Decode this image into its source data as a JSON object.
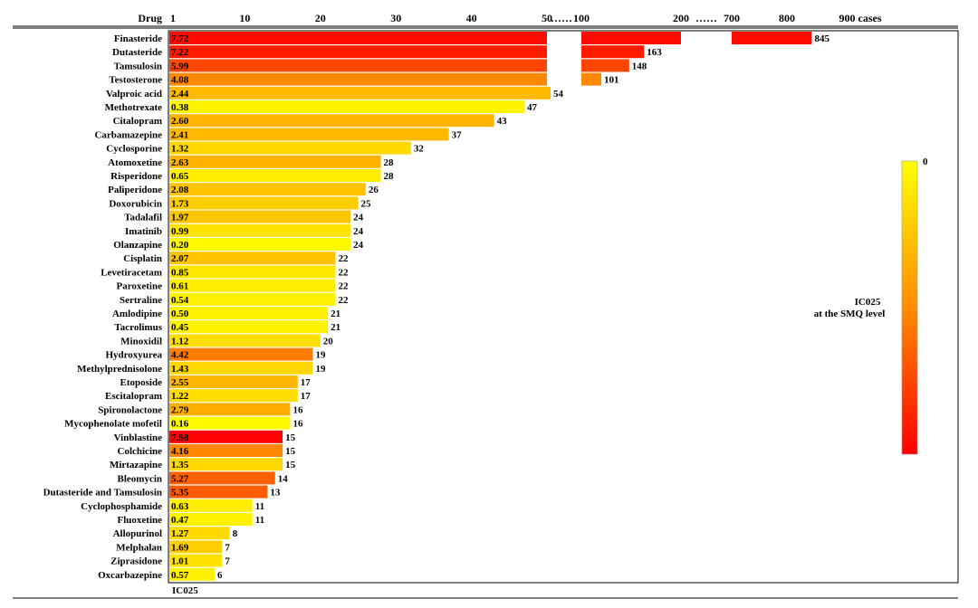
{
  "chart_data": {
    "type": "bar",
    "orientation": "horizontal",
    "header": {
      "drug_label": "Drug",
      "ticks": [
        {
          "label": "1",
          "segment": 0,
          "value": 1
        },
        {
          "label": "10",
          "segment": 0,
          "value": 10
        },
        {
          "label": "20",
          "segment": 0,
          "value": 20
        },
        {
          "label": "30",
          "segment": 0,
          "value": 30
        },
        {
          "label": "40",
          "segment": 0,
          "value": 40
        },
        {
          "label": "50",
          "segment": 0,
          "value": 50
        },
        {
          "label": "100",
          "segment": 1,
          "value": 100
        },
        {
          "label": "200",
          "segment": 1,
          "value": 200
        },
        {
          "label": "700",
          "segment": 2,
          "value": 700
        },
        {
          "label": "800",
          "segment": 2,
          "value": 800
        },
        {
          "label": "900 cases",
          "segment": 2,
          "value": 900
        }
      ],
      "ellipses": [
        "……",
        "……"
      ]
    },
    "segments": [
      {
        "min": 0,
        "max": 50
      },
      {
        "min": 100,
        "max": 200
      },
      {
        "min": 700,
        "max": 900
      }
    ],
    "ic_footer_label": "IC025",
    "colorbar": {
      "title_line1": "IC025",
      "title_line2": "at the SMQ level",
      "top_label": "0",
      "colors": [
        "#ffff00",
        "#ff8c00",
        "#ff0000"
      ]
    },
    "drugs": [
      {
        "name": "Finasteride",
        "ic": "7.72",
        "cases": 845
      },
      {
        "name": "Dutasteride",
        "ic": "7.22",
        "cases": 163
      },
      {
        "name": "Tamsulosin",
        "ic": "5.99",
        "cases": 148
      },
      {
        "name": "Testosterone",
        "ic": "4.08",
        "cases": 101
      },
      {
        "name": "Valproic acid",
        "ic": "2.44",
        "cases": 54
      },
      {
        "name": "Methotrexate",
        "ic": "0.38",
        "cases": 47
      },
      {
        "name": "Citalopram",
        "ic": "2.60",
        "cases": 43
      },
      {
        "name": "Carbamazepine",
        "ic": "2.41",
        "cases": 37
      },
      {
        "name": "Cyclosporine",
        "ic": "1.32",
        "cases": 32
      },
      {
        "name": "Atomoxetine",
        "ic": "2.63",
        "cases": 28
      },
      {
        "name": "Risperidone",
        "ic": "0.65",
        "cases": 28
      },
      {
        "name": "Paliperidone",
        "ic": "2.08",
        "cases": 26
      },
      {
        "name": "Doxorubicin",
        "ic": "1.73",
        "cases": 25
      },
      {
        "name": "Tadalafil",
        "ic": "1.97",
        "cases": 24
      },
      {
        "name": "Imatinib",
        "ic": "0.99",
        "cases": 24
      },
      {
        "name": "Olanzapine",
        "ic": "0.20",
        "cases": 24
      },
      {
        "name": "Cisplatin",
        "ic": "2.07",
        "cases": 22
      },
      {
        "name": "Levetiracetam",
        "ic": "0.85",
        "cases": 22
      },
      {
        "name": "Paroxetine",
        "ic": "0.61",
        "cases": 22
      },
      {
        "name": "Sertraline",
        "ic": "0.54",
        "cases": 22
      },
      {
        "name": "Amlodipine",
        "ic": "0.50",
        "cases": 21
      },
      {
        "name": "Tacrolimus",
        "ic": "0.45",
        "cases": 21
      },
      {
        "name": "Minoxidil",
        "ic": "1.12",
        "cases": 20
      },
      {
        "name": "Hydroxyurea",
        "ic": "4.42",
        "cases": 19
      },
      {
        "name": "Methylprednisolone",
        "ic": "1.43",
        "cases": 19
      },
      {
        "name": "Etoposide",
        "ic": "2.55",
        "cases": 17
      },
      {
        "name": "Escitalopram",
        "ic": "1.22",
        "cases": 17
      },
      {
        "name": "Spironolactone",
        "ic": "2.79",
        "cases": 16
      },
      {
        "name": "Mycophenolate mofetil",
        "ic": "0.16",
        "cases": 16
      },
      {
        "name": "Vinblastine",
        "ic": "7.98",
        "cases": 15
      },
      {
        "name": "Colchicine",
        "ic": "4.16",
        "cases": 15
      },
      {
        "name": "Mirtazapine",
        "ic": "1.35",
        "cases": 15
      },
      {
        "name": "Bleomycin",
        "ic": "5.27",
        "cases": 14
      },
      {
        "name": "Dutasteride and Tamsulosin",
        "ic": "5.35",
        "cases": 13
      },
      {
        "name": "Cyclophosphamide",
        "ic": "0.63",
        "cases": 11
      },
      {
        "name": "Fluoxetine",
        "ic": "0.47",
        "cases": 11
      },
      {
        "name": "Allopurinol",
        "ic": "1.27",
        "cases": 8
      },
      {
        "name": "Melphalan",
        "ic": "1.69",
        "cases": 7
      },
      {
        "name": "Ziprasidone",
        "ic": "1.01",
        "cases": 7
      },
      {
        "name": "Oxcarbazepine",
        "ic": "0.57",
        "cases": 6
      }
    ]
  }
}
